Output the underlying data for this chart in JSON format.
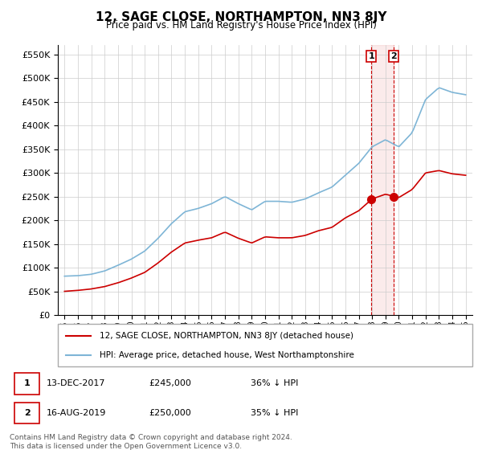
{
  "title": "12, SAGE CLOSE, NORTHAMPTON, NN3 8JY",
  "subtitle": "Price paid vs. HM Land Registry's House Price Index (HPI)",
  "legend_line1": "12, SAGE CLOSE, NORTHAMPTON, NN3 8JY (detached house)",
  "legend_line2": "HPI: Average price, detached house, West Northamptonshire",
  "table_rows": [
    {
      "num": 1,
      "date": "13-DEC-2017",
      "price": "£245,000",
      "hpi": "36% ↓ HPI"
    },
    {
      "num": 2,
      "date": "16-AUG-2019",
      "price": "£250,000",
      "hpi": "35% ↓ HPI"
    }
  ],
  "footer": "Contains HM Land Registry data © Crown copyright and database right 2024.\nThis data is licensed under the Open Government Licence v3.0.",
  "hpi_color": "#7eb5d6",
  "price_color": "#cc0000",
  "marker_color": "#cc0000",
  "vline_color": "#cc0000",
  "ylim_min": 0,
  "ylim_max": 570000,
  "sale1_year": 2017.95,
  "sale2_year": 2019.62,
  "sale1_price": 245000,
  "sale2_price": 250000
}
